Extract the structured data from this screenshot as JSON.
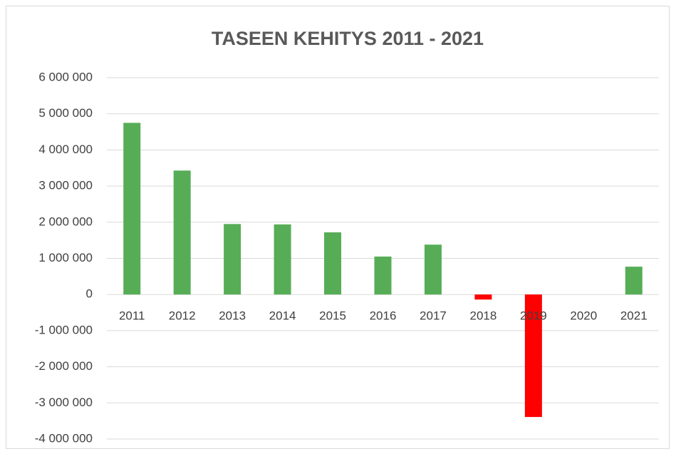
{
  "chart_data": {
    "type": "bar",
    "title": "TASEEN KEHITYS 2011 - 2021",
    "categories": [
      "2011",
      "2012",
      "2013",
      "2014",
      "2015",
      "2016",
      "2017",
      "2018",
      "2019",
      "2020",
      "2021"
    ],
    "values": [
      4750000,
      3430000,
      1950000,
      1940000,
      1720000,
      1050000,
      1380000,
      -140000,
      -3390000,
      0,
      770000
    ],
    "colors": [
      "#56ad56",
      "#56ad56",
      "#56ad56",
      "#56ad56",
      "#56ad56",
      "#56ad56",
      "#56ad56",
      "#ff0000",
      "#ff0000",
      "#56ad56",
      "#56ad56"
    ],
    "ylim": [
      -4000000,
      6000000
    ],
    "yticks": [
      {
        "value": -4000000,
        "label": "-4 000 000"
      },
      {
        "value": -3000000,
        "label": "-3 000 000"
      },
      {
        "value": -2000000,
        "label": "-2 000 000"
      },
      {
        "value": -1000000,
        "label": "-1 000 000"
      },
      0,
      {
        "value": 1000000,
        "label": "1 000 000"
      },
      {
        "value": 2000000,
        "label": "2 000 000"
      },
      {
        "value": 3000000,
        "label": "3 000 000"
      },
      {
        "value": 4000000,
        "label": "4 000 000"
      },
      {
        "value": 5000000,
        "label": "5 000 000"
      },
      {
        "value": 6000000,
        "label": "6 000 000"
      }
    ],
    "grid": true
  }
}
